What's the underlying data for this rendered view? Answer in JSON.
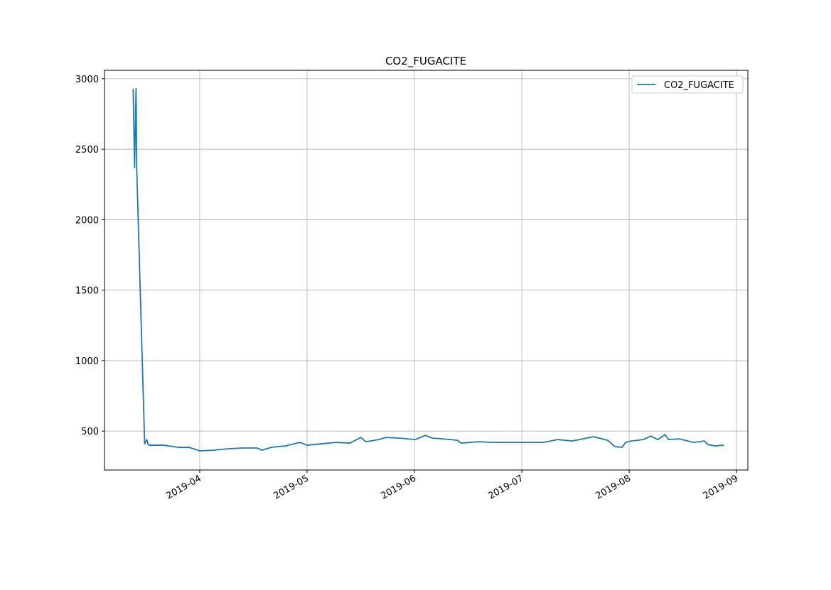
{
  "chart_data": {
    "type": "line",
    "title": "CO2_FUGACITE",
    "x": [
      3.38,
      3.393,
      3.407,
      3.413,
      3.487,
      3.507,
      3.52,
      3.533,
      3.667,
      3.8,
      3.9,
      4,
      4.133,
      4.267,
      4.4,
      4.533,
      4.58,
      4.667,
      4.8,
      4.933,
      5,
      5.133,
      5.267,
      5.4,
      5.5,
      5.547,
      5.667,
      5.733,
      5.867,
      6.007,
      6.1,
      6.167,
      6.267,
      6.4,
      6.433,
      6.6,
      6.733,
      7.007,
      7.2,
      7.333,
      7.467,
      7.667,
      7.8,
      7.867,
      7.933,
      7.967,
      8.02,
      8.133,
      8.2,
      8.267,
      8.333,
      8.367,
      8.467,
      8.6,
      8.7,
      8.733,
      8.8,
      8.88
    ],
    "series": [
      {
        "name": "CO2_FUGACITE",
        "color": "#1f77b4",
        "values": [
          2930,
          2370,
          2930,
          2365,
          410,
          440,
          405,
          400,
          400,
          385,
          385,
          360,
          365,
          375,
          380,
          380,
          365,
          385,
          395,
          420,
          400,
          410,
          420,
          415,
          455,
          425,
          440,
          455,
          450,
          440,
          470,
          450,
          445,
          435,
          415,
          425,
          420,
          420,
          420,
          440,
          430,
          460,
          435,
          390,
          385,
          420,
          430,
          440,
          465,
          440,
          475,
          440,
          445,
          420,
          430,
          405,
          395,
          400
        ]
      }
    ],
    "xlim": [
      3.113,
      9.105
    ],
    "xticks": [
      {
        "value": 4,
        "label": "2019-04"
      },
      {
        "value": 5,
        "label": "2019-05"
      },
      {
        "value": 6,
        "label": "2019-06"
      },
      {
        "value": 7,
        "label": "2019-07"
      },
      {
        "value": 8,
        "label": "2019-08"
      },
      {
        "value": 9,
        "label": "2019-09"
      }
    ],
    "ylim": [
      224,
      3060
    ],
    "yticks": [
      500,
      1000,
      1500,
      2000,
      2500,
      3000
    ],
    "grid": true,
    "legend": "upper right"
  }
}
